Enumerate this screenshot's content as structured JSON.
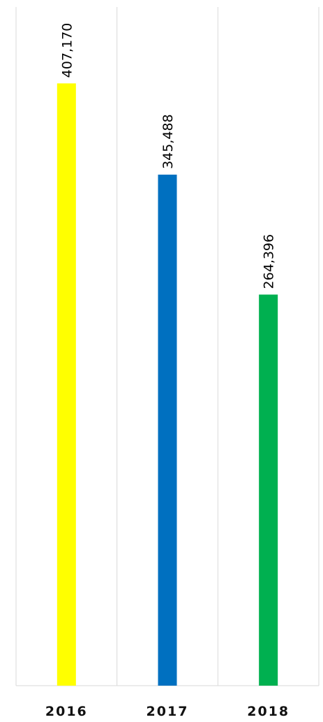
{
  "chart_data": {
    "type": "bar",
    "title": "",
    "xlabel": "",
    "ylabel": "",
    "categories": [
      "2016",
      "2017",
      "2018"
    ],
    "values": [
      407170,
      345488,
      264396
    ],
    "value_labels": [
      "407,170",
      "345,488",
      "264,396"
    ],
    "colors": [
      "#FFFF00",
      "#0070C0",
      "#00B050"
    ],
    "ylim": [
      0,
      430000
    ],
    "grid": "vertical",
    "legend": "none"
  }
}
